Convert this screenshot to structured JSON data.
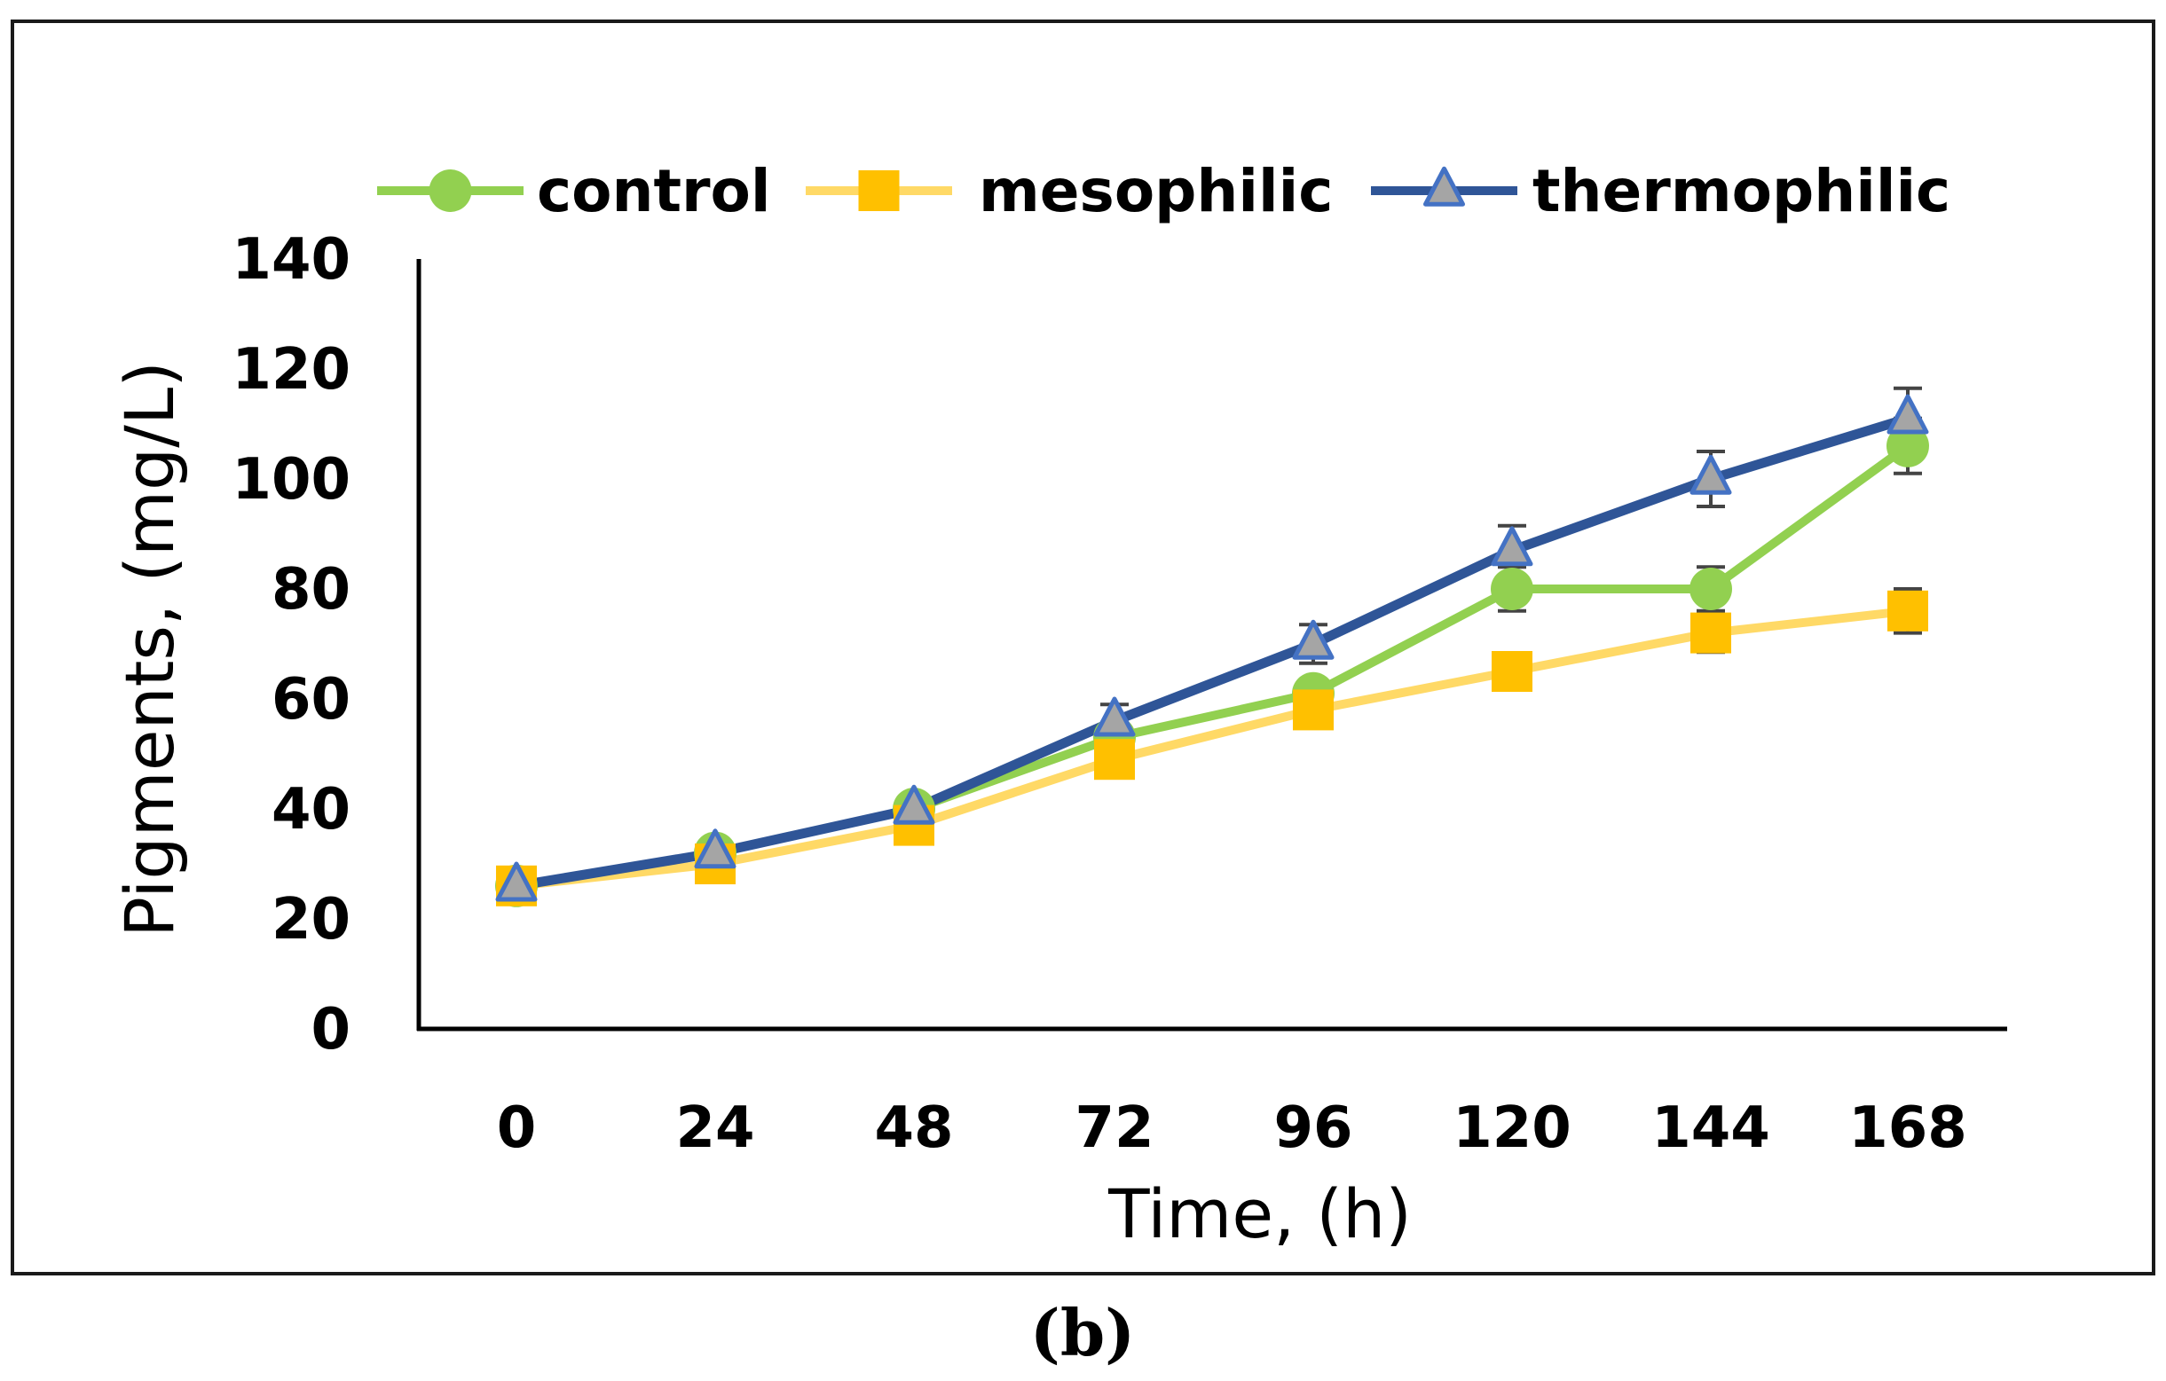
{
  "chart_data": {
    "type": "line",
    "xlabel": "Time, (h)",
    "ylabel": "Pigments,  (mg/L)",
    "x": [
      0,
      24,
      48,
      72,
      96,
      120,
      144,
      168
    ],
    "ylim": [
      0,
      140
    ],
    "yticks": [
      0,
      20,
      40,
      60,
      80,
      100,
      120,
      140
    ],
    "grid": false,
    "legend_position": "top",
    "series": [
      {
        "name": "control",
        "color": "#92D050",
        "marker": "circle",
        "values": [
          26,
          32,
          40,
          53,
          61,
          80,
          80,
          106
        ],
        "errors": [
          0,
          0,
          0,
          0,
          0,
          4,
          4,
          5
        ]
      },
      {
        "name": "mesophilic",
        "color": "#FFD966",
        "marker_color": "#FFC000",
        "marker": "square",
        "values": [
          26,
          30,
          37,
          49,
          58,
          65,
          72,
          76
        ],
        "errors": [
          0,
          0,
          0,
          0,
          0,
          0,
          3.5,
          4
        ]
      },
      {
        "name": "thermophilic",
        "color": "#2F5597",
        "marker_color": "#A5A5A5",
        "marker_edge": "#4472C4",
        "marker": "triangle",
        "values": [
          26,
          32,
          40,
          56,
          70,
          87,
          100,
          111
        ],
        "errors": [
          0,
          0,
          0,
          3,
          3.5,
          4.5,
          5,
          5.5
        ]
      }
    ]
  },
  "panel_label": "(b)"
}
